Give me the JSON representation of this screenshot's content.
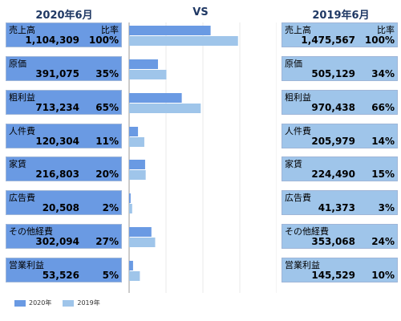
{
  "header": {
    "left": "2020年6月",
    "vs": "VS",
    "right": "2019年6月"
  },
  "ratio_label": "比率",
  "colors": {
    "y2020": "#6a9ae3",
    "y2019": "#9fc5ea",
    "header": "#1f3864"
  },
  "legend": {
    "y2020": "2020年",
    "y2019": "2019年"
  },
  "rows": [
    {
      "label": "売上高",
      "v2020": "1,104,309",
      "p2020": "100%",
      "v2019": "1,475,567",
      "p2019": "100%"
    },
    {
      "label": "原価",
      "v2020": "391,075",
      "p2020": "35%",
      "v2019": "505,129",
      "p2019": "34%"
    },
    {
      "label": "粗利益",
      "v2020": "713,234",
      "p2020": "65%",
      "v2019": "970,438",
      "p2019": "66%"
    },
    {
      "label": "人件費",
      "v2020": "120,304",
      "p2020": "11%",
      "v2019": "205,979",
      "p2019": "14%"
    },
    {
      "label": "家賃",
      "v2020": "216,803",
      "p2020": "20%",
      "v2019": "224,490",
      "p2019": "15%"
    },
    {
      "label": "広告費",
      "v2020": "20,508",
      "p2020": "2%",
      "v2019": "41,373",
      "p2019": "3%"
    },
    {
      "label": "その他経費",
      "v2020": "302,094",
      "p2020": "27%",
      "v2019": "353,068",
      "p2019": "24%"
    },
    {
      "label": "営業利益",
      "v2020": "53,526",
      "p2020": "5%",
      "v2019": "145,529",
      "p2019": "10%"
    }
  ],
  "chart_data": {
    "type": "bar",
    "orientation": "horizontal",
    "categories": [
      "売上高",
      "原価",
      "粗利益",
      "人件費",
      "家賃",
      "広告費",
      "その他経費",
      "営業利益"
    ],
    "series": [
      {
        "name": "2020年",
        "values": [
          1104309,
          391075,
          713234,
          120304,
          216803,
          20508,
          302094,
          53526
        ]
      },
      {
        "name": "2019年",
        "values": [
          1475567,
          505129,
          970438,
          205979,
          224490,
          41373,
          353068,
          145529
        ]
      }
    ],
    "xlim": [
      0,
      2000000
    ],
    "grid": true,
    "legend_position": "bottom-left"
  }
}
